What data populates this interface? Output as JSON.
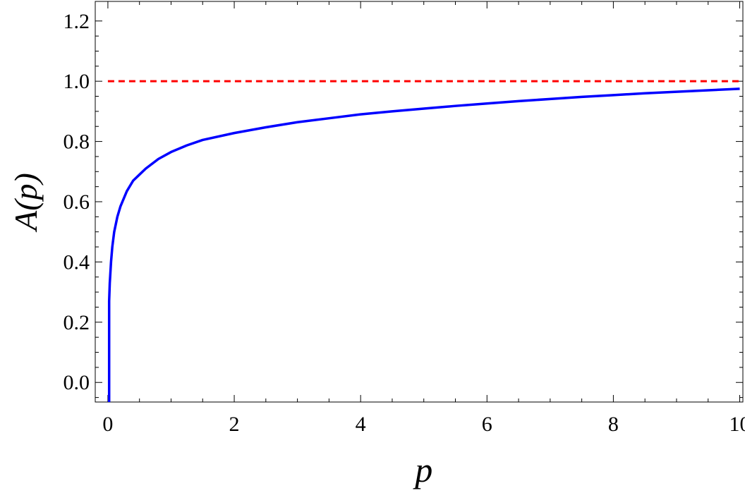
{
  "chart_data": {
    "type": "line",
    "title": "",
    "xlabel": "p",
    "ylabel": "A(p)",
    "xlim": [
      -0.2,
      10.05
    ],
    "ylim": [
      -0.065,
      1.265
    ],
    "xticks": [
      0,
      2,
      4,
      6,
      8,
      10
    ],
    "xtick_labels": [
      "0",
      "2",
      "4",
      "6",
      "8",
      "10"
    ],
    "yticks": [
      0.0,
      0.2,
      0.4,
      0.6,
      0.8,
      1.0,
      1.2
    ],
    "ytick_labels": [
      "0.0",
      "0.2",
      "0.4",
      "0.6",
      "0.8",
      "1.0",
      "1.2"
    ],
    "grid": false,
    "series": [
      {
        "color": "#0000ff",
        "style": "solid",
        "x": [
          0.02,
          0.02,
          0.03,
          0.05,
          0.07,
          0.1,
          0.15,
          0.2,
          0.3,
          0.4,
          0.5,
          0.6,
          0.8,
          1.0,
          1.25,
          1.5,
          2.0,
          2.5,
          3.0,
          3.5,
          4.0,
          4.5,
          5.0,
          5.5,
          6.0,
          6.5,
          7.0,
          7.5,
          8.0,
          8.5,
          9.0,
          9.5,
          10.0
        ],
        "y": [
          -0.065,
          0.27,
          0.33,
          0.4,
          0.45,
          0.5,
          0.55,
          0.585,
          0.635,
          0.67,
          0.69,
          0.71,
          0.742,
          0.765,
          0.787,
          0.805,
          0.828,
          0.847,
          0.864,
          0.877,
          0.89,
          0.9,
          0.909,
          0.918,
          0.926,
          0.934,
          0.941,
          0.948,
          0.954,
          0.96,
          0.965,
          0.97,
          0.975
        ]
      },
      {
        "color": "#ff0000",
        "style": "dashed",
        "x": [
          0,
          10
        ],
        "y": [
          1.0,
          1.0
        ]
      }
    ]
  }
}
